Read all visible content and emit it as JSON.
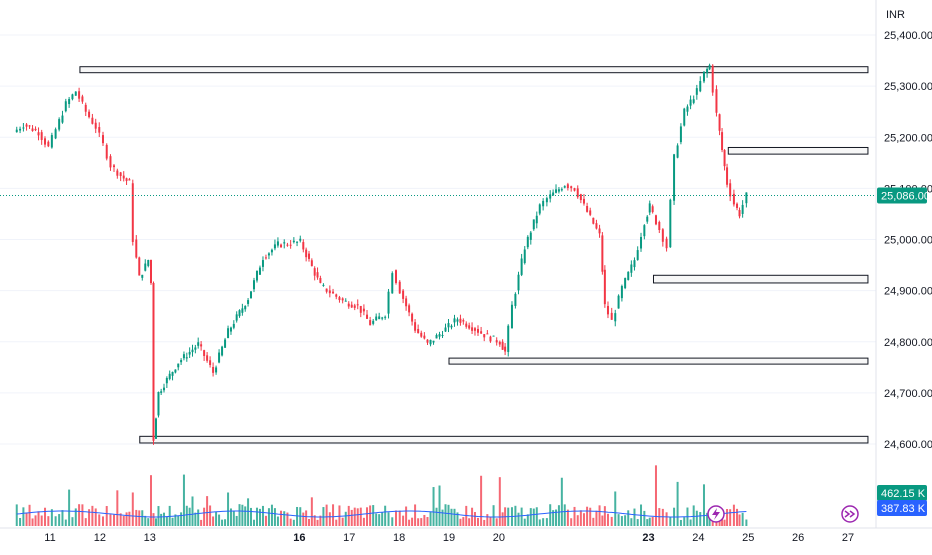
{
  "chart_data": {
    "type": "candlestick",
    "currency": "INR",
    "price_axis": {
      "ticks": [
        "25,400.00",
        "25,300.00",
        "25,200.00",
        "25,100.00",
        "25,000.00",
        "24,900.00",
        "24,800.00",
        "24,700.00",
        "24,600.00"
      ],
      "range": [
        24580,
        25440
      ]
    },
    "time_axis": {
      "labels": [
        {
          "text": "11",
          "bold": false
        },
        {
          "text": "12",
          "bold": false
        },
        {
          "text": "13",
          "bold": false
        },
        {
          "text": "16",
          "bold": true
        },
        {
          "text": "17",
          "bold": false
        },
        {
          "text": "18",
          "bold": false
        },
        {
          "text": "19",
          "bold": false
        },
        {
          "text": "20",
          "bold": false
        },
        {
          "text": "23",
          "bold": true
        },
        {
          "text": "24",
          "bold": false
        },
        {
          "text": "25",
          "bold": false
        },
        {
          "text": "26",
          "bold": false
        },
        {
          "text": "27",
          "bold": false
        }
      ]
    },
    "last_price": {
      "label": "25,086.00",
      "value": 25086
    },
    "volume": {
      "last_label": "462.15 K",
      "ma_label": "387.83 K"
    },
    "zones": [
      {
        "from": 25330,
        "to": 25338,
        "start_day": 11.6,
        "end_day": 27.4
      },
      {
        "from": 25167,
        "to": 25180,
        "start_day": 24.6,
        "end_day": 27.4
      },
      {
        "from": 24915,
        "to": 24930,
        "start_day": 23.1,
        "end_day": 27.4
      },
      {
        "from": 24758,
        "to": 24768,
        "start_day": 19.0,
        "end_day": 27.4
      },
      {
        "from": 24602,
        "to": 24615,
        "start_day": 12.8,
        "end_day": 27.4
      }
    ],
    "path": [
      {
        "day": 10.3,
        "price": 25210
      },
      {
        "day": 10.5,
        "price": 25225
      },
      {
        "day": 10.8,
        "price": 25210
      },
      {
        "day": 11.0,
        "price": 25180
      },
      {
        "day": 11.15,
        "price": 25215
      },
      {
        "day": 11.35,
        "price": 25265
      },
      {
        "day": 11.55,
        "price": 25290
      },
      {
        "day": 11.75,
        "price": 25250
      },
      {
        "day": 11.95,
        "price": 25220
      },
      {
        "day": 12.1,
        "price": 25185
      },
      {
        "day": 12.25,
        "price": 25145
      },
      {
        "day": 12.45,
        "price": 25125
      },
      {
        "day": 12.62,
        "price": 25110
      },
      {
        "day": 12.7,
        "price": 25000
      },
      {
        "day": 12.82,
        "price": 24925
      },
      {
        "day": 13.0,
        "price": 24960
      },
      {
        "day": 13.05,
        "price": 24915
      },
      {
        "day": 13.1,
        "price": 24610
      },
      {
        "day": 13.2,
        "price": 24700
      },
      {
        "day": 13.6,
        "price": 24760
      },
      {
        "day": 14.0,
        "price": 24795
      },
      {
        "day": 14.3,
        "price": 24740
      },
      {
        "day": 14.6,
        "price": 24820
      },
      {
        "day": 15.0,
        "price": 24885
      },
      {
        "day": 15.3,
        "price": 24965
      },
      {
        "day": 15.6,
        "price": 24990
      },
      {
        "day": 16.05,
        "price": 24995
      },
      {
        "day": 16.45,
        "price": 24910
      },
      {
        "day": 16.9,
        "price": 24880
      },
      {
        "day": 17.2,
        "price": 24870
      },
      {
        "day": 17.45,
        "price": 24835
      },
      {
        "day": 17.75,
        "price": 24855
      },
      {
        "day": 17.9,
        "price": 24940
      },
      {
        "day": 18.05,
        "price": 24900
      },
      {
        "day": 18.35,
        "price": 24825
      },
      {
        "day": 18.6,
        "price": 24795
      },
      {
        "day": 18.9,
        "price": 24820
      },
      {
        "day": 19.2,
        "price": 24845
      },
      {
        "day": 19.55,
        "price": 24825
      },
      {
        "day": 19.8,
        "price": 24810
      },
      {
        "day": 20.05,
        "price": 24800
      },
      {
        "day": 20.15,
        "price": 24780
      },
      {
        "day": 20.3,
        "price": 24870
      },
      {
        "day": 20.55,
        "price": 24985
      },
      {
        "day": 20.85,
        "price": 25065
      },
      {
        "day": 21.0,
        "price": 25080
      },
      {
        "day": 21.35,
        "price": 25108
      },
      {
        "day": 21.55,
        "price": 25100
      },
      {
        "day": 22.05,
        "price": 25008
      },
      {
        "day": 22.15,
        "price": 24870
      },
      {
        "day": 22.3,
        "price": 24840
      },
      {
        "day": 22.5,
        "price": 24905
      },
      {
        "day": 22.75,
        "price": 24960
      },
      {
        "day": 22.95,
        "price": 25035
      },
      {
        "day": 23.05,
        "price": 25065
      },
      {
        "day": 23.25,
        "price": 25020
      },
      {
        "day": 23.4,
        "price": 24985
      },
      {
        "day": 23.55,
        "price": 25160
      },
      {
        "day": 23.75,
        "price": 25250
      },
      {
        "day": 24.0,
        "price": 25290
      },
      {
        "day": 24.15,
        "price": 25325
      },
      {
        "day": 24.25,
        "price": 25340
      },
      {
        "day": 24.4,
        "price": 25245
      },
      {
        "day": 24.5,
        "price": 25175
      },
      {
        "day": 24.6,
        "price": 25110
      },
      {
        "day": 24.75,
        "price": 25070
      },
      {
        "day": 24.85,
        "price": 25050
      },
      {
        "day": 25.0,
        "price": 25086
      }
    ]
  }
}
